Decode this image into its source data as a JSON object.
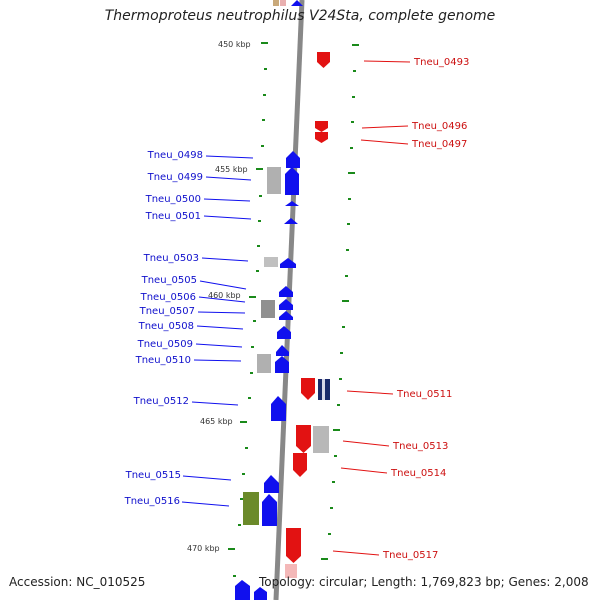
{
  "title": "Thermoproteus neutrophilus V24Sta, complete genome",
  "footer": {
    "accession": "Accession: NC_010525",
    "topology": "Topology: circular; Length: 1,769,823 bp; Genes: 2,008"
  },
  "colors": {
    "forward_strand": "#1010ee",
    "reverse_strand": "#e21212",
    "backbone": "#888888",
    "tick": "#1a8a1a",
    "hypothetical": "#b0b0b0",
    "olive_gene": "#6b8a2a"
  },
  "ticks": [
    "450 kbp",
    "455 kbp",
    "460 kbp",
    "465 kbp",
    "470 kbp"
  ],
  "forward_genes": [
    "Tneu_0498",
    "Tneu_0499",
    "Tneu_0500",
    "Tneu_0501",
    "Tneu_0503",
    "Tneu_0505",
    "Tneu_0506",
    "Tneu_0507",
    "Tneu_0508",
    "Tneu_0509",
    "Tneu_0510",
    "Tneu_0512",
    "Tneu_0515",
    "Tneu_0516"
  ],
  "reverse_genes": [
    "Tneu_0493",
    "Tneu_0496",
    "Tneu_0497",
    "Tneu_0511",
    "Tneu_0513",
    "Tneu_0514",
    "Tneu_0517"
  ]
}
